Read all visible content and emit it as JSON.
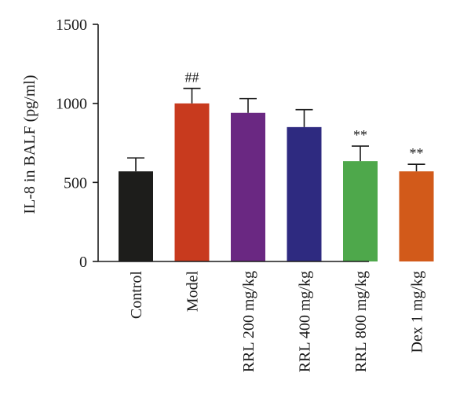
{
  "chart_data": {
    "type": "bar",
    "title": "",
    "xlabel": "",
    "ylabel": "IL-8 in BALF (pg/ml)",
    "ylim": [
      0,
      1500
    ],
    "yticks": [
      0,
      500,
      1000,
      1500
    ],
    "categories": [
      "Control",
      "Model",
      "RRL 200 mg/kg",
      "RRL 400 mg/kg",
      "RRL 800 mg/kg",
      "Dex 1 mg/kg"
    ],
    "values": [
      570,
      1000,
      940,
      850,
      635,
      570
    ],
    "errors": [
      85,
      95,
      90,
      110,
      95,
      45
    ],
    "annotations": [
      "",
      "##",
      "",
      "",
      "**",
      "**"
    ],
    "colors": [
      "#1d1d1b",
      "#c83a1e",
      "#6a2882",
      "#2e2a80",
      "#4ea84b",
      "#d25a1a"
    ],
    "error_style": "upper cap only",
    "grid": false
  }
}
